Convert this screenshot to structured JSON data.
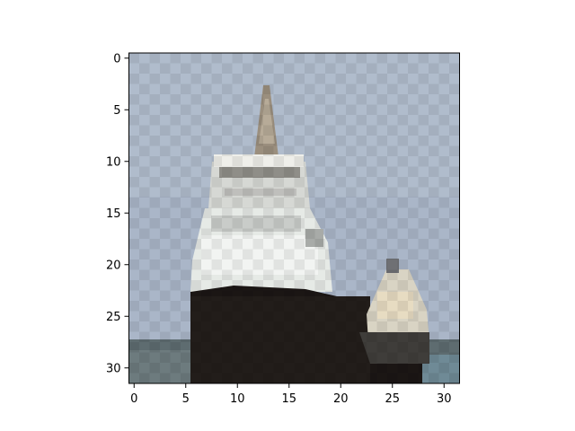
{
  "figure": {
    "x_ticks": [
      "0",
      "5",
      "10",
      "15",
      "20",
      "25",
      "30"
    ],
    "y_ticks": [
      "0",
      "5",
      "10",
      "15",
      "20",
      "25",
      "30"
    ],
    "grid": "32x32 pixels",
    "colors": {
      "sky": "#aab6c8",
      "checker_dark": "#9aa5b5",
      "hull": "#1b1614",
      "superstructure": "#e6eae6",
      "mast": "#9b8f7e",
      "boat": "#e7dcc2",
      "water": "#5e6c70"
    }
  }
}
